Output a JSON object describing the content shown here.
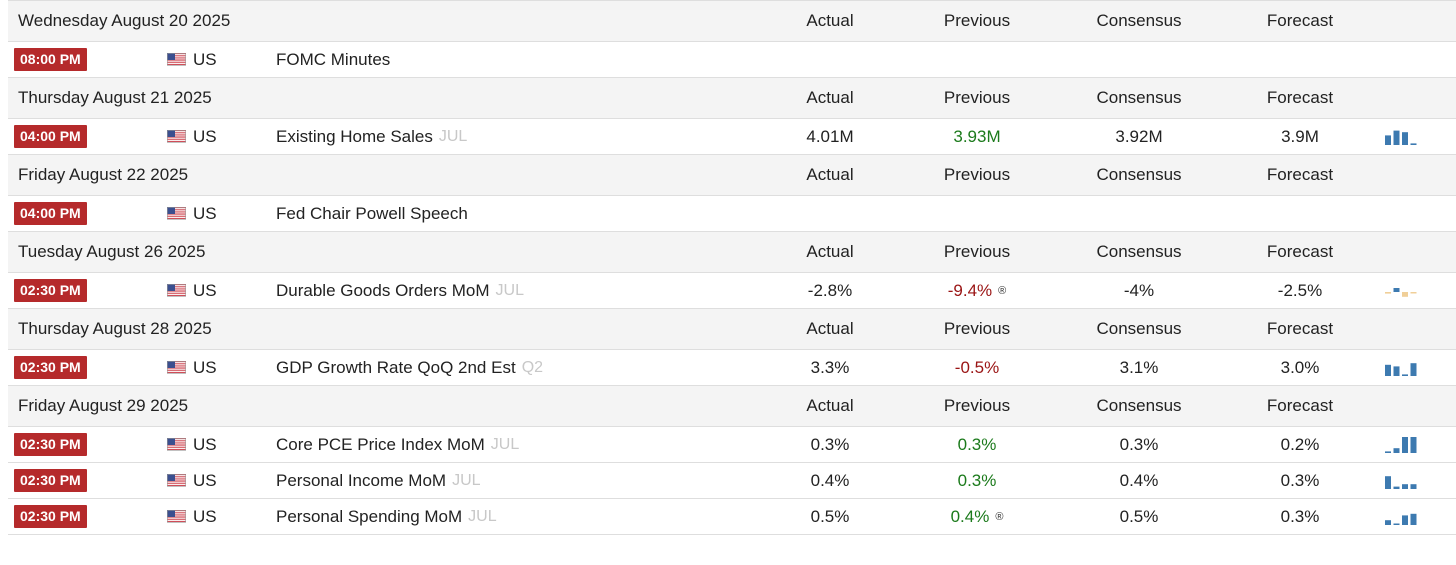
{
  "columns": {
    "actual": "Actual",
    "previous": "Previous",
    "consensus": "Consensus",
    "forecast": "Forecast"
  },
  "days": [
    {
      "date": "Wednesday August 20 2025",
      "events": [
        {
          "time": "08:00 PM",
          "country": "US",
          "event": "FOMC Minutes",
          "ref": "",
          "actual": "",
          "previous": "",
          "previous_color": "",
          "revised": false,
          "consensus": "",
          "forecast": "",
          "sparkline": null
        }
      ]
    },
    {
      "date": "Thursday August 21 2025",
      "events": [
        {
          "time": "04:00 PM",
          "country": "US",
          "event": "Existing Home Sales",
          "ref": "JUL",
          "actual": "4.01M",
          "previous": "3.93M",
          "previous_color": "green",
          "revised": false,
          "consensus": "3.92M",
          "forecast": "3.9M",
          "sparkline": [
            0.6,
            0.9,
            0.8,
            0.1
          ]
        }
      ]
    },
    {
      "date": "Friday August 22 2025",
      "events": [
        {
          "time": "04:00 PM",
          "country": "US",
          "event": "Fed Chair Powell Speech",
          "ref": "",
          "actual": "",
          "previous": "",
          "previous_color": "",
          "revised": false,
          "consensus": "",
          "forecast": "",
          "sparkline": null
        }
      ]
    },
    {
      "date": "Tuesday August 26 2025",
      "events": [
        {
          "time": "02:30 PM",
          "country": "US",
          "event": "Durable Goods Orders MoM",
          "ref": "JUL",
          "actual": "-2.8%",
          "previous": "-9.4%",
          "previous_color": "red",
          "revised": true,
          "consensus": "-4%",
          "forecast": "-2.5%",
          "sparkline": [
            -0.2,
            0.5,
            -0.6,
            -0.1
          ]
        }
      ]
    },
    {
      "date": "Thursday August 28 2025",
      "events": [
        {
          "time": "02:30 PM",
          "country": "US",
          "event": "GDP Growth Rate QoQ 2nd Est",
          "ref": "Q2",
          "actual": "3.3%",
          "previous": "-0.5%",
          "previous_color": "red",
          "revised": false,
          "consensus": "3.1%",
          "forecast": "3.0%",
          "sparkline": [
            0.7,
            0.6,
            0.1,
            0.8
          ]
        }
      ]
    },
    {
      "date": "Friday August 29 2025",
      "events": [
        {
          "time": "02:30 PM",
          "country": "US",
          "event": "Core PCE Price Index MoM",
          "ref": "JUL",
          "actual": "0.3%",
          "previous": "0.3%",
          "previous_color": "green",
          "revised": false,
          "consensus": "0.3%",
          "forecast": "0.2%",
          "sparkline": [
            0.1,
            0.3,
            1.0,
            1.0
          ]
        },
        {
          "time": "02:30 PM",
          "country": "US",
          "event": "Personal Income MoM",
          "ref": "JUL",
          "actual": "0.4%",
          "previous": "0.3%",
          "previous_color": "green",
          "revised": false,
          "consensus": "0.4%",
          "forecast": "0.3%",
          "sparkline": [
            0.8,
            0.15,
            0.3,
            0.3
          ]
        },
        {
          "time": "02:30 PM",
          "country": "US",
          "event": "Personal Spending MoM",
          "ref": "JUL",
          "actual": "0.5%",
          "previous": "0.4%",
          "previous_color": "green",
          "revised": true,
          "consensus": "0.5%",
          "forecast": "0.3%",
          "sparkline": [
            0.3,
            0.0,
            0.6,
            0.7
          ]
        }
      ]
    }
  ],
  "colors": {
    "time_badge": "#b52a2b",
    "green": "#1b7a1b",
    "red": "#9a1414",
    "spark_pos": "#3d7ab0",
    "spark_neg": "#f0cf98"
  },
  "icons": {
    "flag": "us-flag-icon",
    "revised": "registered-icon"
  },
  "revised_glyph": "®"
}
